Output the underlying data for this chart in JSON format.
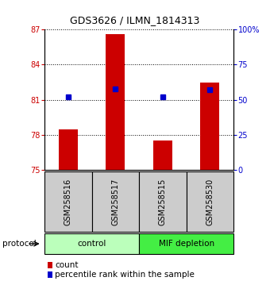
{
  "title": "GDS3626 / ILMN_1814313",
  "samples": [
    "GSM258516",
    "GSM258517",
    "GSM258515",
    "GSM258530"
  ],
  "count_values": [
    78.5,
    86.6,
    77.5,
    82.5
  ],
  "percentile_values": [
    52,
    58,
    52,
    57
  ],
  "ylim_left": [
    75,
    87
  ],
  "ylim_right": [
    0,
    100
  ],
  "yticks_left": [
    75,
    78,
    81,
    84,
    87
  ],
  "yticks_right": [
    0,
    25,
    50,
    75,
    100
  ],
  "yticklabels_right": [
    "0",
    "25",
    "50",
    "75",
    "100%"
  ],
  "bar_color": "#CC0000",
  "dot_color": "#0000CC",
  "bar_width": 0.4,
  "background_color": "#ffffff",
  "label_count": "count",
  "label_percentile": "percentile rank within the sample",
  "protocol_label": "protocol",
  "group_boundaries": [
    [
      0,
      2,
      "control",
      "#BBFFBB"
    ],
    [
      2,
      4,
      "MIF depletion",
      "#44EE44"
    ]
  ],
  "sample_box_color": "#CCCCCC",
  "title_fontsize": 9,
  "tick_fontsize": 7,
  "legend_fontsize": 7.5
}
